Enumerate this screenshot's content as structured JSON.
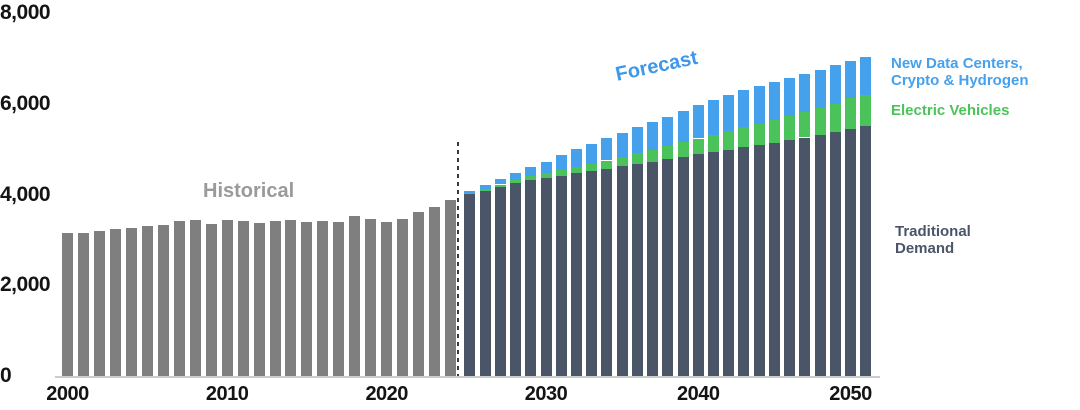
{
  "colors": {
    "historical_bars": "#7f7f7f",
    "traditional_demand": "#4a5568",
    "electric_vehicles": "#4cc35a",
    "new_data_centers": "#46a1ec",
    "historical_label": "#9a9a9a",
    "forecast_label": "#3e97e8",
    "axis_text": "#141414"
  },
  "annotations": {
    "historical": "Historical",
    "forecast": "Forecast"
  },
  "legend": {
    "datacenters_line1": "New Data Centers,",
    "datacenters_line2": "Crypto & Hydrogen",
    "ev": "Electric Vehicles",
    "traditional_line1": "Traditional",
    "traditional_line2": "Demand"
  },
  "chart_data": {
    "type": "bar",
    "title": "",
    "ylim": [
      0,
      8000
    ],
    "grid": false,
    "yticks": [
      {
        "value": 0,
        "label": "0"
      },
      {
        "value": 2000,
        "label": "2,000"
      },
      {
        "value": 4000,
        "label": "4,000"
      },
      {
        "value": 6000,
        "label": "6,000"
      },
      {
        "value": 8000,
        "label": "8,000"
      }
    ],
    "xticks": [
      2000,
      2010,
      2020,
      2030,
      2040,
      2050
    ],
    "divider_between": [
      2024,
      2025
    ],
    "historical": {
      "name": "Historical",
      "color": "#7f7f7f",
      "years": [
        2000,
        2001,
        2002,
        2003,
        2004,
        2005,
        2006,
        2007,
        2008,
        2009,
        2010,
        2011,
        2012,
        2013,
        2014,
        2015,
        2016,
        2017,
        2018,
        2019,
        2020,
        2021,
        2022,
        2023,
        2024
      ],
      "values": [
        3150,
        3160,
        3200,
        3230,
        3270,
        3300,
        3330,
        3410,
        3430,
        3340,
        3440,
        3420,
        3380,
        3410,
        3440,
        3400,
        3420,
        3390,
        3530,
        3470,
        3390,
        3470,
        3610,
        3730,
        3880
      ]
    },
    "forecast": {
      "name": "Forecast",
      "years": [
        2025,
        2026,
        2027,
        2028,
        2029,
        2030,
        2031,
        2032,
        2033,
        2034,
        2035,
        2036,
        2037,
        2038,
        2039,
        2040,
        2041,
        2042,
        2043,
        2044,
        2045,
        2046,
        2047,
        2048,
        2049,
        2050,
        2051
      ],
      "series": [
        {
          "key": "traditional",
          "name": "Traditional Demand",
          "color": "#4a5568",
          "values": [
            4010,
            4085,
            4165,
            4250,
            4310,
            4360,
            4415,
            4465,
            4515,
            4565,
            4620,
            4675,
            4725,
            4775,
            4830,
            4885,
            4930,
            4985,
            5040,
            5090,
            5145,
            5200,
            5255,
            5310,
            5370,
            5450,
            5510
          ]
        },
        {
          "key": "ev",
          "name": "Electric Vehicles",
          "color": "#4cc35a",
          "values": [
            25,
            40,
            55,
            70,
            90,
            105,
            125,
            145,
            165,
            185,
            210,
            235,
            260,
            290,
            320,
            350,
            380,
            410,
            440,
            470,
            500,
            530,
            560,
            590,
            620,
            680,
            690
          ]
        },
        {
          "key": "datacenters",
          "name": "New Data Centers, Crypto & Hydrogen",
          "color": "#46a1ec",
          "values": [
            50,
            90,
            130,
            165,
            215,
            260,
            330,
            390,
            445,
            490,
            530,
            570,
            610,
            655,
            700,
            740,
            770,
            795,
            815,
            830,
            840,
            845,
            850,
            855,
            855,
            815,
            830
          ]
        }
      ]
    }
  }
}
